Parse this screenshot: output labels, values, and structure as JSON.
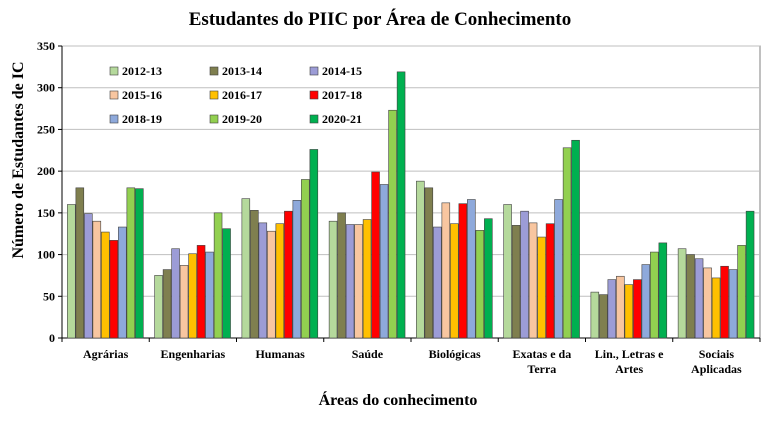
{
  "chart_data": {
    "type": "bar",
    "title": "Estudantes do PIIC por Área de Conhecimento",
    "xlabel": "Áreas do conhecimento",
    "ylabel": "Número de Estudantes de IC",
    "ylim": [
      0,
      350
    ],
    "yticks": [
      0,
      50,
      100,
      150,
      200,
      250,
      300,
      350
    ],
    "grid": true,
    "legend_position": "top-left (inside plot)",
    "categories": [
      [
        "Agrárias"
      ],
      [
        "Engenharias"
      ],
      [
        "Humanas"
      ],
      [
        "Saúde"
      ],
      [
        "Biológicas"
      ],
      [
        "Exatas e da",
        "Terra"
      ],
      [
        "Lin., Letras e",
        "Artes"
      ],
      [
        "Sociais",
        "Aplicadas"
      ]
    ],
    "series": [
      {
        "name": "2012-13",
        "color": "#B5D99C",
        "values": [
          160,
          75,
          167,
          140,
          188,
          160,
          55,
          107
        ]
      },
      {
        "name": "2013-14",
        "color": "#7F7F4F",
        "values": [
          180,
          82,
          153,
          150,
          180,
          135,
          52,
          100
        ]
      },
      {
        "name": "2014-15",
        "color": "#9C9CD6",
        "values": [
          149,
          107,
          138,
          136,
          133,
          152,
          70,
          95
        ]
      },
      {
        "name": "2015-16",
        "color": "#F8C6A0",
        "values": [
          140,
          87,
          128,
          136,
          162,
          138,
          74,
          84
        ]
      },
      {
        "name": "2016-17",
        "color": "#FFC000",
        "values": [
          127,
          101,
          137,
          142,
          137,
          121,
          64,
          72
        ]
      },
      {
        "name": "2017-18",
        "color": "#FF0000",
        "values": [
          117,
          111,
          152,
          199,
          161,
          137,
          70,
          86
        ]
      },
      {
        "name": "2018-19",
        "color": "#8EA9DB",
        "values": [
          133,
          103,
          165,
          184,
          166,
          166,
          88,
          82
        ]
      },
      {
        "name": "2019-20",
        "color": "#92D050",
        "values": [
          180,
          150,
          190,
          273,
          129,
          228,
          103,
          111
        ]
      },
      {
        "name": "2020-21",
        "color": "#00B050",
        "values": [
          179,
          131,
          226,
          319,
          143,
          237,
          114,
          152
        ]
      }
    ]
  }
}
